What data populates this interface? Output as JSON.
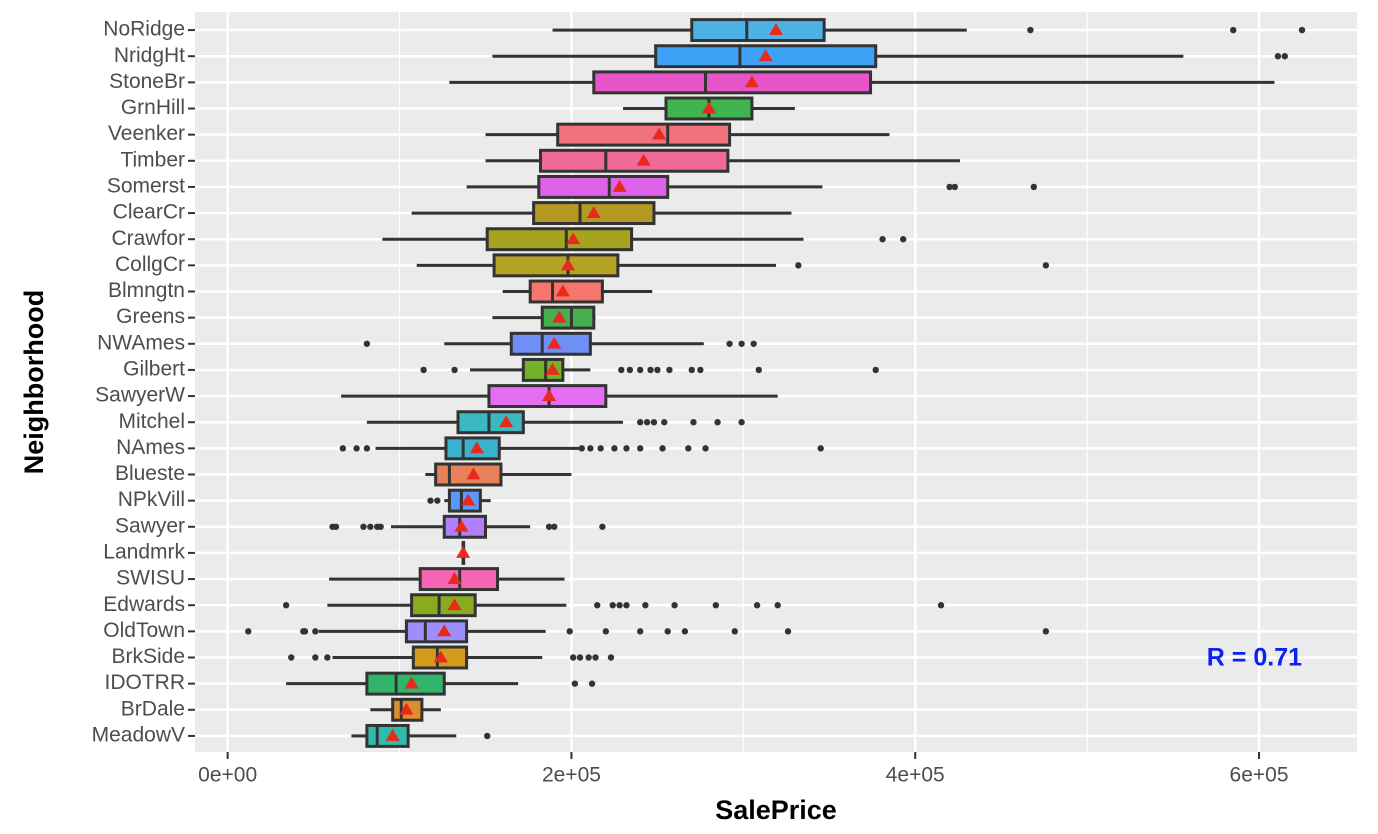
{
  "chart_data": {
    "type": "boxplot",
    "orientation": "horizontal",
    "x_label": "SalePrice",
    "y_label": "Neighborhood",
    "annotation": "R =  0.71",
    "grid": true,
    "xlim": [
      -19000,
      657000
    ],
    "xticks": [
      {
        "value": 0,
        "label": "0e+00"
      },
      {
        "value": 200000,
        "label": "2e+05"
      },
      {
        "value": 400000,
        "label": "4e+05"
      },
      {
        "value": 600000,
        "label": "6e+05"
      }
    ],
    "mean_color": "#e8291c",
    "categories": [
      "NoRidge",
      "NridgHt",
      "StoneBr",
      "GrnHill",
      "Veenker",
      "Timber",
      "Somerst",
      "ClearCr",
      "Crawfor",
      "CollgCr",
      "Blmngtn",
      "Greens",
      "NWAmes",
      "Gilbert",
      "SawyerW",
      "Mitchel",
      "NAmes",
      "Blueste",
      "NPkVill",
      "Sawyer",
      "Landmrk",
      "SWISU",
      "Edwards",
      "OldTown",
      "BrkSide",
      "IDOTRR",
      "BrDale",
      "MeadowV"
    ],
    "colors": [
      "#4db3e6",
      "#3da2f5",
      "#e754c7",
      "#3fb44f",
      "#f0727d",
      "#ef6a9a",
      "#dd62e8",
      "#b49a23",
      "#a6a41f",
      "#b5a223",
      "#f5766a",
      "#46b04e",
      "#6f8ff7",
      "#74b12a",
      "#e36ef3",
      "#3cb8c1",
      "#3ab1cf",
      "#e8805a",
      "#5b96fa",
      "#b180f8",
      "#32b58f",
      "#f565b2",
      "#8aab1f",
      "#9e8ef9",
      "#d39b1c",
      "#33b46d",
      "#dc8e2c",
      "#2ebbac"
    ],
    "whisker_low": [
      189000,
      154000,
      129000,
      230000,
      150000,
      150000,
      139000,
      107000,
      90000,
      110000,
      160000,
      154000,
      126000,
      141000,
      66000,
      81000,
      86000,
      115000,
      126000,
      95000,
      137000,
      59000,
      58000,
      53000,
      61000,
      34000,
      83000,
      72000
    ],
    "q1": [
      270000,
      249000,
      213000,
      255000,
      192000,
      182000,
      181000,
      178000,
      151000,
      155000,
      176000,
      183000,
      165000,
      172000,
      152000,
      134000,
      127000,
      121000,
      129000,
      126000,
      137000,
      112000,
      107000,
      104000,
      108000,
      81000,
      96000,
      81000
    ],
    "median": [
      302000,
      298000,
      278000,
      280000,
      256000,
      220000,
      222000,
      205000,
      197000,
      198000,
      189000,
      200000,
      183000,
      185000,
      187000,
      152000,
      137000,
      129000,
      136000,
      135000,
      137000,
      135000,
      123000,
      115000,
      122000,
      98000,
      101000,
      87000
    ],
    "q3": [
      347000,
      377000,
      374000,
      305000,
      292000,
      291000,
      256000,
      248000,
      235000,
      227000,
      218000,
      213000,
      211000,
      195000,
      220000,
      172000,
      158000,
      159000,
      147000,
      150000,
      137000,
      157000,
      144000,
      139000,
      139000,
      126000,
      113000,
      105000
    ],
    "whisker_high": [
      430000,
      556000,
      609000,
      330000,
      385000,
      426000,
      346000,
      328000,
      335000,
      319000,
      247000,
      214000,
      277000,
      211000,
      320000,
      230000,
      205000,
      200000,
      153000,
      176000,
      137000,
      196000,
      197000,
      185000,
      183000,
      169000,
      124000,
      133000
    ],
    "mean": [
      319000,
      313000,
      305000,
      280000,
      251000,
      242000,
      228000,
      213000,
      201000,
      198000,
      195000,
      193000,
      190000,
      189000,
      187000,
      162000,
      145000,
      143000,
      140000,
      136000,
      137000,
      132000,
      132000,
      126000,
      124000,
      107000,
      104000,
      96000
    ],
    "outliers": [
      [
        467000,
        585000,
        625000
      ],
      [
        611000,
        615000
      ],
      [],
      [],
      [],
      [],
      [
        420000,
        423000,
        469000
      ],
      [],
      [
        381000,
        393000
      ],
      [
        332000,
        476000
      ],
      [],
      [],
      [
        81000,
        292000,
        299000,
        306000
      ],
      [
        114000,
        132000,
        229000,
        234000,
        240000,
        246000,
        250000,
        257000,
        270000,
        275000,
        309000,
        377000
      ],
      [],
      [
        240000,
        244000,
        248000,
        254000,
        271000,
        285000,
        299000
      ],
      [
        67000,
        75000,
        81000,
        206000,
        211000,
        217000,
        225000,
        232000,
        240000,
        253000,
        268000,
        278000,
        345000
      ],
      [],
      [
        118000,
        122000
      ],
      [
        61000,
        63000,
        79000,
        83000,
        87000,
        89000,
        187000,
        190000,
        218000
      ],
      [],
      [],
      [
        34000,
        215000,
        224000,
        228000,
        232000,
        243000,
        260000,
        284000,
        308000,
        320000,
        415000
      ],
      [
        12000,
        44000,
        45000,
        51000,
        199000,
        220000,
        240000,
        256000,
        266000,
        295000,
        326000,
        476000
      ],
      [
        37000,
        51000,
        58000,
        201000,
        205000,
        210000,
        214000,
        223000
      ],
      [
        202000,
        212000
      ],
      [],
      [
        151000
      ]
    ]
  }
}
